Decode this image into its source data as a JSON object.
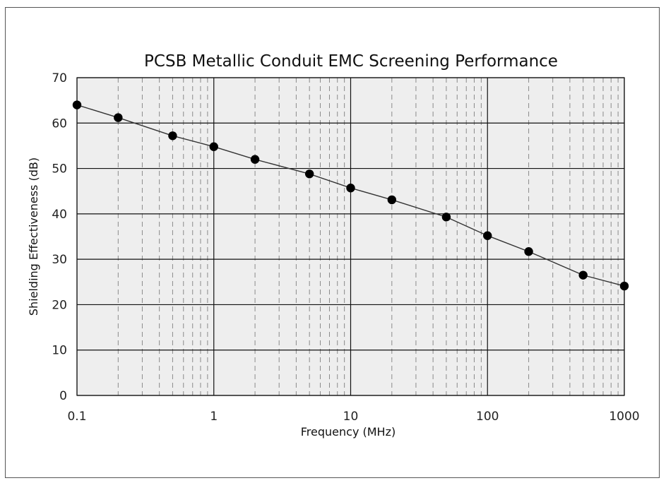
{
  "chart_data": {
    "type": "line",
    "title": "PCSB Metallic Conduit EMC Screening Performance",
    "xlabel": "Frequency (MHz)",
    "ylabel": "Shielding Effectiveness (dB)",
    "x_scale": "log",
    "xlim": [
      0.1,
      1000
    ],
    "ylim": [
      0,
      70
    ],
    "x_ticks": [
      "0.1",
      "1",
      "10",
      "100",
      "1000"
    ],
    "y_ticks": [
      "0",
      "10",
      "20",
      "30",
      "40",
      "50",
      "60",
      "70"
    ],
    "grid": true,
    "legend": "none",
    "series": [
      {
        "x": [
          0.1,
          0.2,
          0.5,
          1,
          2,
          5,
          10,
          20,
          50,
          100,
          200,
          500,
          1000
        ],
        "y": [
          64,
          61.2,
          57.2,
          54.8,
          52,
          48.8,
          45.7,
          43.1,
          39.3,
          35.2,
          31.7,
          26.5,
          24.1
        ],
        "color": "#000000"
      }
    ],
    "colors": {
      "plot_background": "#eeeeee",
      "major_grid": "#111111",
      "minor_grid": "#8a8a8a",
      "line": "#333333",
      "marker": "#000000"
    }
  }
}
